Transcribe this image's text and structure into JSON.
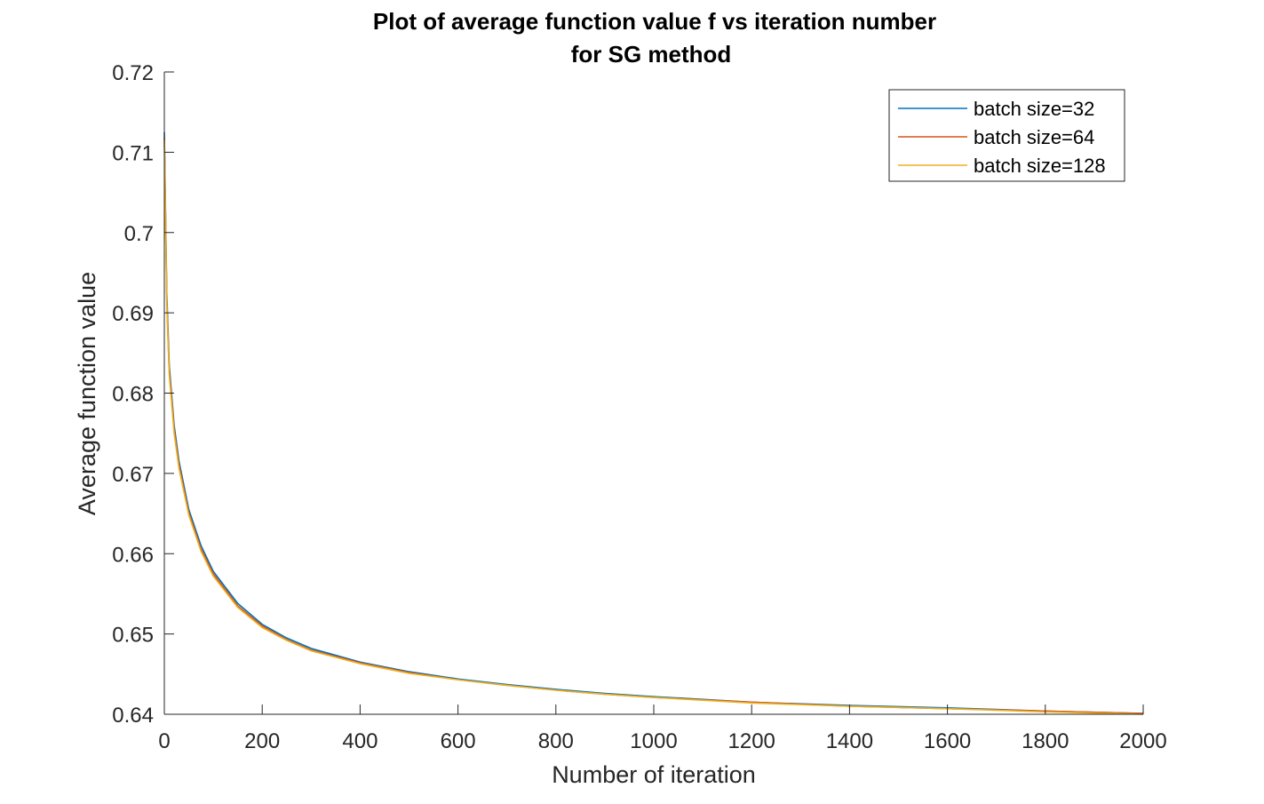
{
  "chart_data": {
    "type": "line",
    "title_line1": "Plot of average function value f vs iteration number",
    "title_line2": "for SG method",
    "xlabel": "Number of iteration",
    "ylabel": "Average function value",
    "xlim": [
      0,
      2000
    ],
    "ylim": [
      0.64,
      0.72
    ],
    "x_ticks": [
      "0",
      "200",
      "400",
      "600",
      "800",
      "1000",
      "1200",
      "1400",
      "1600",
      "1800",
      "2000"
    ],
    "y_ticks": [
      "0.64",
      "0.65",
      "0.66",
      "0.67",
      "0.68",
      "0.69",
      "0.7",
      "0.71",
      "0.72"
    ],
    "grid": false,
    "legend_position": "top-right",
    "x": [
      0,
      5,
      10,
      20,
      30,
      50,
      75,
      100,
      150,
      200,
      250,
      300,
      400,
      500,
      600,
      700,
      800,
      900,
      1000,
      1200,
      1400,
      1600,
      1800,
      2000
    ],
    "series": [
      {
        "name": "batch size=32",
        "color": "#0072BD",
        "values": [
          0.7125,
          0.6925,
          0.6835,
          0.676,
          0.6715,
          0.6655,
          0.661,
          0.6578,
          0.6538,
          0.6512,
          0.6495,
          0.6482,
          0.6465,
          0.6453,
          0.6444,
          0.6437,
          0.6431,
          0.6426,
          0.6422,
          0.6415,
          0.6411,
          0.6408,
          0.6404,
          0.6401
        ]
      },
      {
        "name": "batch size=64",
        "color": "#D95319",
        "values": [
          0.7118,
          0.6915,
          0.6828,
          0.6755,
          0.671,
          0.6651,
          0.6606,
          0.6575,
          0.6535,
          0.651,
          0.6493,
          0.648,
          0.6464,
          0.6452,
          0.6443,
          0.6436,
          0.643,
          0.6425,
          0.6421,
          0.6415,
          0.641,
          0.6407,
          0.6404,
          0.6401
        ]
      },
      {
        "name": "batch size=128",
        "color": "#EDB120",
        "values": [
          0.7115,
          0.691,
          0.6823,
          0.675,
          0.6706,
          0.6648,
          0.6603,
          0.6572,
          0.6533,
          0.6508,
          0.6492,
          0.6479,
          0.6463,
          0.6451,
          0.6443,
          0.6436,
          0.643,
          0.6425,
          0.6421,
          0.6414,
          0.641,
          0.6407,
          0.6403,
          0.64
        ]
      }
    ],
    "axis_color": "#262626",
    "legend_box_color": "#262626"
  }
}
